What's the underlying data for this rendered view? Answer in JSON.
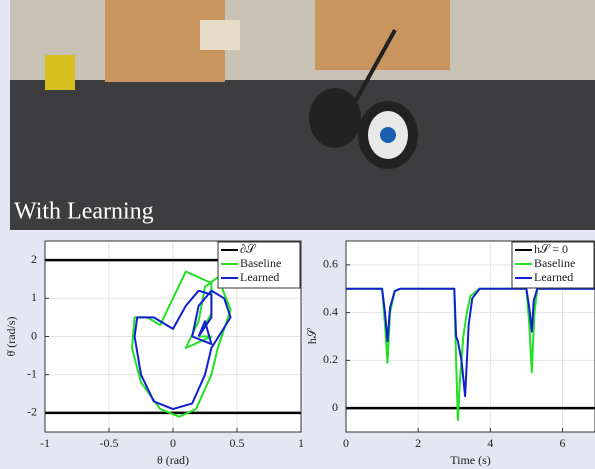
{
  "photo": {
    "caption": "With Learning"
  },
  "chart_data": [
    {
      "type": "line",
      "x_label": "θ (rad)",
      "y_label": "θ̇ (rad/s)",
      "xlim": [
        -1,
        1
      ],
      "ylim": [
        -2.5,
        2.5
      ],
      "xticks": [
        -1,
        -0.5,
        0,
        0.5,
        1
      ],
      "yticks": [
        -2,
        -1,
        0,
        1,
        2
      ],
      "grid": true,
      "legend": "upper right",
      "series": [
        {
          "name": "∂𝒮",
          "color": "#000000",
          "x": [
            -1,
            1
          ],
          "values": [
            2,
            2
          ]
        },
        {
          "name": "Baseline",
          "color": "#22e022",
          "x": [
            0.2,
            0.3,
            0.3,
            0.1,
            0,
            -0.1,
            -0.2,
            -0.3,
            -0.32,
            -0.25,
            -0.1,
            0.05,
            0.18,
            0.3,
            0.35,
            0.45,
            0.35,
            0.25,
            0.2,
            0.1,
            0.3,
            0.2
          ],
          "values": [
            0,
            0.6,
            1.4,
            1.7,
            1,
            0.3,
            0.5,
            0.5,
            -0.3,
            -1.2,
            -1.9,
            -2.1,
            -1.9,
            -1,
            -0.3,
            0.7,
            1.55,
            1.3,
            0.4,
            -0.3,
            0,
            0
          ]
        },
        {
          "name": "Learned",
          "color": "#1020d0",
          "x": [
            0.2,
            0.3,
            0.3,
            0.2,
            0.1,
            0,
            -0.15,
            -0.28,
            -0.3,
            -0.25,
            -0.15,
            0,
            0.15,
            0.25,
            0.3,
            0.45,
            0.4,
            0.3,
            0.2,
            0.15,
            0.3,
            0.25,
            0.2
          ],
          "values": [
            0,
            0.5,
            1.1,
            1.2,
            0.8,
            0.2,
            0.5,
            0.5,
            0,
            -1,
            -1.7,
            -1.9,
            -1.75,
            -1,
            -0.3,
            0.5,
            1,
            1.2,
            0.8,
            0,
            -0.2,
            0.4,
            0
          ]
        }
      ],
      "extra_lines": [
        {
          "color": "#000000",
          "x": [
            -1,
            1
          ],
          "values": [
            -2,
            -2
          ]
        }
      ]
    },
    {
      "type": "line",
      "x_label": "Time (s)",
      "y_label": "h𝒮",
      "xlim": [
        0,
        6.9
      ],
      "ylim": [
        -0.1,
        0.7
      ],
      "xticks": [
        0,
        2,
        4,
        6
      ],
      "yticks": [
        0,
        0.2,
        0.4,
        0.6
      ],
      "grid": true,
      "legend": "upper right",
      "series": [
        {
          "name": "h𝒮 = 0",
          "color": "#000000",
          "x": [
            0,
            6.9
          ],
          "values": [
            0,
            0
          ]
        },
        {
          "name": "Baseline",
          "color": "#22e022",
          "x": [
            0,
            1,
            1.08,
            1.15,
            1.22,
            1.35,
            1.5,
            3,
            3.05,
            3.1,
            3.15,
            3.25,
            3.35,
            3.45,
            3.7,
            4,
            5,
            5.08,
            5.15,
            5.22,
            5.3,
            5.5,
            6.9
          ],
          "values": [
            0.5,
            0.5,
            0.35,
            0.19,
            0.4,
            0.49,
            0.5,
            0.5,
            0.2,
            -0.05,
            0.1,
            0.3,
            0.4,
            0.47,
            0.5,
            0.5,
            0.5,
            0.35,
            0.15,
            0.4,
            0.5,
            0.5,
            0.5
          ]
        },
        {
          "name": "Learned",
          "color": "#1020d0",
          "x": [
            0,
            1,
            1.08,
            1.15,
            1.22,
            1.35,
            1.5,
            3,
            3.05,
            3.1,
            3.2,
            3.3,
            3.4,
            3.5,
            3.7,
            4,
            5,
            5.08,
            5.15,
            5.2,
            5.3,
            5.5,
            6.9
          ],
          "values": [
            0.5,
            0.5,
            0.4,
            0.28,
            0.42,
            0.49,
            0.5,
            0.5,
            0.3,
            0.28,
            0.2,
            0.05,
            0.35,
            0.46,
            0.5,
            0.5,
            0.5,
            0.42,
            0.32,
            0.45,
            0.5,
            0.5,
            0.5
          ]
        }
      ]
    }
  ]
}
